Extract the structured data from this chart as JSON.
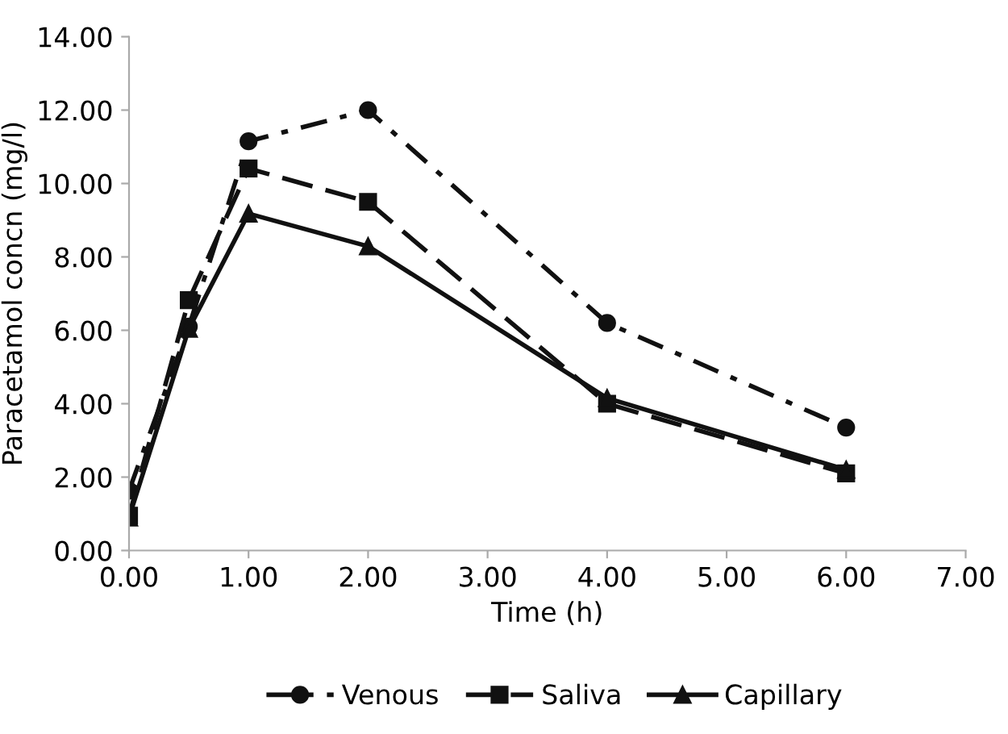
{
  "chart_data": {
    "type": "line",
    "xlabel": "Time (h)",
    "ylabel": "Paracetamol concn (mg/l)",
    "x": [
      0,
      0.5,
      1,
      2,
      4,
      6
    ],
    "series": [
      {
        "name": "Venous",
        "color": "#111111",
        "values": [
          1.63,
          6.1,
          11.15,
          12.0,
          6.2,
          3.35
        ],
        "marker": "circle",
        "line_style": "dashdot"
      },
      {
        "name": "Saliva",
        "color": "#111111",
        "values": [
          0.95,
          6.82,
          10.41,
          9.5,
          4.0,
          2.1
        ],
        "marker": "square",
        "line_style": "dashed"
      },
      {
        "name": "Capillary",
        "color": "#111111",
        "values": [
          0.9,
          6.04,
          9.18,
          8.29,
          4.15,
          2.2
        ],
        "marker": "triangle",
        "line_style": "solid"
      }
    ],
    "xlim": [
      0,
      7
    ],
    "ylim": [
      0,
      14
    ],
    "xticks": [
      {
        "value": 0,
        "label": "0.00"
      },
      {
        "value": 1,
        "label": "1.00"
      },
      {
        "value": 2,
        "label": "2.00"
      },
      {
        "value": 3,
        "label": "3.00"
      },
      {
        "value": 4,
        "label": "4.00"
      },
      {
        "value": 5,
        "label": "5.00"
      },
      {
        "value": 6,
        "label": "6.00"
      },
      {
        "value": 7,
        "label": "7.00"
      }
    ],
    "yticks": [
      {
        "value": 0,
        "label": "0.00"
      },
      {
        "value": 2,
        "label": "2.00"
      },
      {
        "value": 4,
        "label": "4.00"
      },
      {
        "value": 6,
        "label": "6.00"
      },
      {
        "value": 8,
        "label": "8.00"
      },
      {
        "value": 10,
        "label": "10.00"
      },
      {
        "value": 12,
        "label": "12.00"
      },
      {
        "value": 14,
        "label": "14.00"
      }
    ],
    "grid": false,
    "legend": "bottom"
  }
}
